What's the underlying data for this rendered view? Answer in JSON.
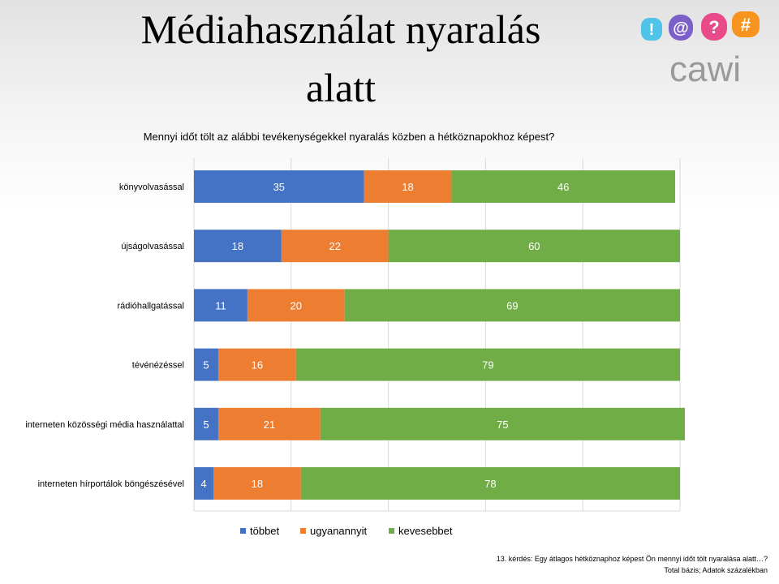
{
  "slide": {
    "title_line1": "Médiahasználat nyaralás",
    "title_line2": "alatt",
    "logo_text": "cawi",
    "logo_glyphs": [
      "!",
      "@",
      "?",
      "#"
    ]
  },
  "colors": {
    "tobbet": "#4472c4",
    "ugyanannyit": "#ed7d31",
    "kevesebbet": "#70ad47",
    "logo_text": "#9a9a9a",
    "logo_bubbles": [
      "#4fc3e8",
      "#7d5fc9",
      "#e94b8a",
      "#f7941d"
    ]
  },
  "chart_data": {
    "type": "bar",
    "orientation": "horizontal",
    "stacked": true,
    "title": "Mennyi időt tölt az alábbi tevékenységekkel nyaralás közben a hétköznapokhoz képest?",
    "categories": [
      "könyvolvasással",
      "újságolvasással",
      "rádióhallgatással",
      "tévénézéssel",
      "interneten közösségi média használattal",
      "interneten hírportálok böngészésével"
    ],
    "series": [
      {
        "name": "többet",
        "values": [
          35,
          18,
          11,
          5,
          5,
          4
        ]
      },
      {
        "name": "ugyanannyit",
        "values": [
          18,
          22,
          20,
          16,
          21,
          18
        ]
      },
      {
        "name": "kevesebbet",
        "values": [
          46,
          60,
          69,
          79,
          75,
          78
        ]
      }
    ],
    "xlim": [
      0,
      100
    ],
    "grid": true,
    "legend_position": "bottom"
  },
  "footnote": {
    "line1": "13. kérdés: Egy átlagos hétköznaphoz képest Ön mennyi időt tölt nyaralása alatt…?",
    "line2": "Total bázis; Adatok százalékban"
  }
}
